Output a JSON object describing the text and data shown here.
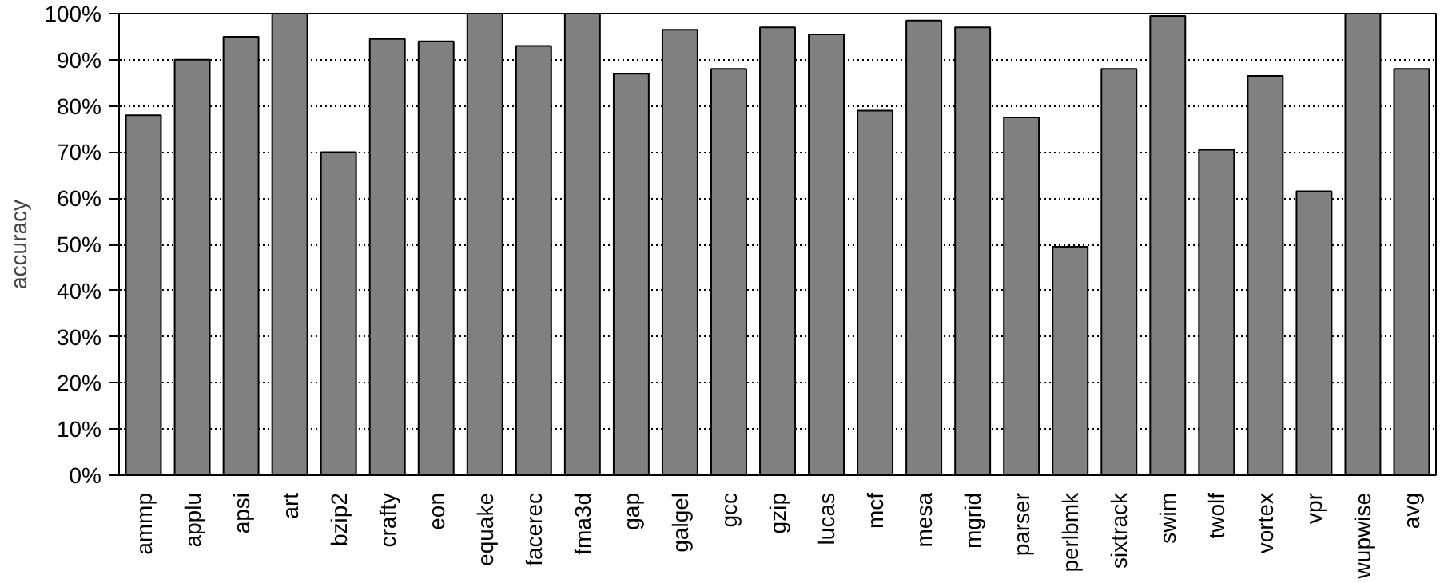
{
  "chart_data": {
    "type": "bar",
    "ylabel": "accuracy",
    "categories": [
      "ammp",
      "applu",
      "apsi",
      "art",
      "bzip2",
      "crafty",
      "eon",
      "equake",
      "facerec",
      "fma3d",
      "gap",
      "galgel",
      "gcc",
      "gzip",
      "lucas",
      "mcf",
      "mesa",
      "mgrid",
      "parser",
      "perlbmk",
      "sixtrack",
      "swim",
      "twolf",
      "vortex",
      "vpr",
      "wupwise",
      "avg"
    ],
    "values": [
      78,
      90,
      95,
      100,
      70,
      94.5,
      94,
      100,
      93,
      100,
      87,
      96.5,
      88,
      97,
      95.5,
      79,
      98.5,
      97,
      77.5,
      49.5,
      88,
      99.5,
      70.5,
      86.5,
      61.5,
      100,
      88
    ],
    "color": "#808080",
    "ylim": [
      0,
      100
    ],
    "yticks": [
      {
        "value": 0,
        "label": "0%"
      },
      {
        "value": 10,
        "label": "10%"
      },
      {
        "value": 20,
        "label": "20%"
      },
      {
        "value": 30,
        "label": "30%"
      },
      {
        "value": 40,
        "label": "40%"
      },
      {
        "value": 50,
        "label": "50%"
      },
      {
        "value": 60,
        "label": "60%"
      },
      {
        "value": 70,
        "label": "70%"
      },
      {
        "value": 80,
        "label": "80%"
      },
      {
        "value": 90,
        "label": "90%"
      },
      {
        "value": 100,
        "label": "100%"
      }
    ],
    "grid": "y"
  }
}
